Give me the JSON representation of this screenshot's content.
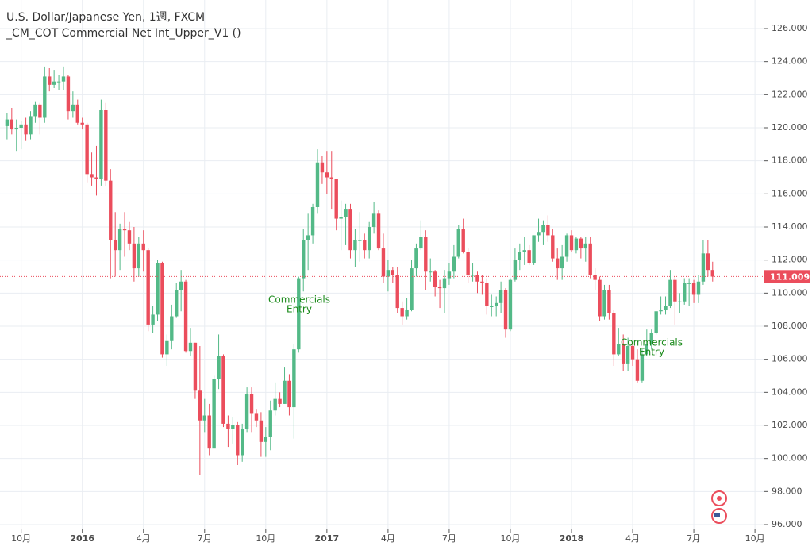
{
  "chart_data": {
    "type": "candlestick",
    "title": "U.S. Dollar/Japanese Yen, 1週, FXCM",
    "subtitle": "_CM_COT Commercial Net Int_Upper_V1 ()",
    "up_color": "#53b987",
    "down_color": "#eb4d5c",
    "grid": true,
    "ylim": [
      96,
      126
    ],
    "yticks": [
      {
        "value": 96,
        "label": "96.000"
      },
      {
        "value": 98,
        "label": "98.000"
      },
      {
        "value": 100,
        "label": "100.000"
      },
      {
        "value": 102,
        "label": "102.000"
      },
      {
        "value": 104,
        "label": "104.000"
      },
      {
        "value": 106,
        "label": "106.000"
      },
      {
        "value": 108,
        "label": "108.000"
      },
      {
        "value": 110,
        "label": "110.000"
      },
      {
        "value": 112,
        "label": "112.000"
      },
      {
        "value": 114,
        "label": "114.000"
      },
      {
        "value": 116,
        "label": "116.000"
      },
      {
        "value": 118,
        "label": "118.000"
      },
      {
        "value": 120,
        "label": "120.000"
      },
      {
        "value": 122,
        "label": "122.000"
      },
      {
        "value": 124,
        "label": "124.000"
      },
      {
        "value": 126,
        "label": "126.000"
      }
    ],
    "xlim": [
      -1.5,
      160.5
    ],
    "xticks": [
      {
        "value": 3,
        "label": "10月"
      },
      {
        "value": 16,
        "label": "2016"
      },
      {
        "value": 29,
        "label": "4月"
      },
      {
        "value": 42,
        "label": "7月"
      },
      {
        "value": 55,
        "label": "10月"
      },
      {
        "value": 68,
        "label": "2017"
      },
      {
        "value": 81,
        "label": "4月"
      },
      {
        "value": 94,
        "label": "7月"
      },
      {
        "value": 107,
        "label": "10月"
      },
      {
        "value": 120,
        "label": "2018"
      },
      {
        "value": 133,
        "label": "4月"
      },
      {
        "value": 146,
        "label": "7月"
      },
      {
        "value": 159,
        "label": "10月"
      }
    ],
    "last_price": 111.009,
    "last_price_label": "111.009",
    "last_price_color": "#eb4d5c",
    "annotations": [
      {
        "lines": [
          "Commercials",
          "Entry"
        ]
      },
      {
        "lines": [
          "Commercials",
          "Entry"
        ]
      }
    ],
    "ohlc": [
      [
        120.1,
        120.9,
        119.3,
        120.5
      ],
      [
        120.5,
        121.2,
        119.6,
        119.9
      ],
      [
        119.9,
        120.5,
        118.6,
        120.0
      ],
      [
        120.0,
        120.4,
        118.7,
        120.2
      ],
      [
        120.2,
        120.6,
        119.2,
        119.6
      ],
      [
        119.6,
        121.0,
        119.3,
        120.7
      ],
      [
        120.7,
        121.6,
        120.3,
        121.4
      ],
      [
        121.4,
        121.5,
        119.6,
        120.6
      ],
      [
        120.6,
        123.7,
        120.3,
        123.1
      ],
      [
        123.1,
        123.6,
        122.2,
        122.6
      ],
      [
        122.6,
        123.5,
        122.4,
        122.8
      ],
      [
        122.8,
        123.2,
        122.3,
        122.8
      ],
      [
        122.8,
        123.7,
        122.3,
        123.1
      ],
      [
        123.1,
        123.2,
        120.5,
        121.0
      ],
      [
        121.0,
        122.2,
        120.6,
        121.4
      ],
      [
        121.4,
        121.7,
        120.2,
        120.3
      ],
      [
        120.3,
        120.6,
        119.9,
        120.2
      ],
      [
        120.2,
        120.3,
        116.7,
        117.2
      ],
      [
        117.2,
        118.5,
        116.5,
        117.0
      ],
      [
        117.0,
        118.9,
        115.9,
        116.9
      ],
      [
        116.9,
        121.7,
        116.5,
        121.1
      ],
      [
        121.1,
        121.5,
        116.5,
        116.8
      ],
      [
        116.8,
        117.5,
        110.9,
        113.2
      ],
      [
        113.2,
        114.9,
        111.0,
        112.6
      ],
      [
        112.6,
        114.2,
        111.4,
        113.9
      ],
      [
        113.9,
        114.9,
        112.2,
        113.8
      ],
      [
        113.8,
        114.3,
        112.6,
        113.0
      ],
      [
        113.0,
        114.0,
        110.7,
        111.5
      ],
      [
        111.5,
        113.4,
        111.0,
        113.0
      ],
      [
        113.0,
        113.8,
        111.3,
        112.6
      ],
      [
        112.6,
        112.7,
        107.7,
        108.1
      ],
      [
        108.1,
        109.2,
        107.6,
        108.7
      ],
      [
        108.7,
        112.0,
        108.3,
        111.8
      ],
      [
        111.8,
        111.9,
        106.1,
        106.3
      ],
      [
        106.3,
        107.5,
        105.6,
        107.1
      ],
      [
        107.1,
        109.3,
        106.6,
        108.6
      ],
      [
        108.6,
        110.6,
        108.5,
        110.2
      ],
      [
        110.2,
        111.4,
        108.9,
        110.7
      ],
      [
        110.7,
        110.8,
        106.4,
        106.5
      ],
      [
        106.5,
        107.9,
        106.2,
        107.0
      ],
      [
        107.0,
        107.0,
        103.6,
        104.1
      ],
      [
        104.1,
        106.8,
        99.0,
        102.3
      ],
      [
        102.3,
        103.6,
        101.6,
        102.6
      ],
      [
        102.6,
        103.3,
        100.2,
        100.6
      ],
      [
        100.6,
        105.0,
        100.6,
        104.8
      ],
      [
        104.8,
        107.5,
        104.2,
        106.2
      ],
      [
        106.2,
        106.3,
        101.9,
        102.1
      ],
      [
        102.1,
        102.6,
        100.7,
        101.8
      ],
      [
        101.8,
        102.5,
        100.9,
        102.0
      ],
      [
        102.0,
        102.2,
        99.6,
        100.2
      ],
      [
        100.2,
        102.1,
        99.8,
        101.8
      ],
      [
        101.8,
        104.3,
        101.6,
        103.9
      ],
      [
        103.9,
        104.3,
        101.6,
        102.7
      ],
      [
        102.7,
        103.0,
        101.9,
        102.3
      ],
      [
        102.3,
        102.8,
        100.1,
        101.0
      ],
      [
        101.0,
        101.9,
        100.1,
        101.3
      ],
      [
        101.3,
        103.5,
        100.5,
        102.9
      ],
      [
        102.9,
        104.6,
        102.6,
        103.6
      ],
      [
        103.6,
        104.0,
        103.1,
        103.3
      ],
      [
        103.3,
        105.5,
        103.3,
        104.7
      ],
      [
        104.7,
        105.1,
        102.6,
        103.1
      ],
      [
        103.1,
        106.9,
        101.2,
        106.6
      ],
      [
        106.6,
        111.0,
        106.4,
        110.9
      ],
      [
        110.9,
        113.9,
        110.1,
        113.2
      ],
      [
        113.2,
        114.8,
        111.4,
        113.5
      ],
      [
        113.5,
        115.4,
        113.0,
        115.2
      ],
      [
        115.2,
        118.7,
        114.8,
        117.9
      ],
      [
        117.9,
        118.3,
        116.6,
        117.3
      ],
      [
        117.3,
        118.6,
        116.0,
        117.0
      ],
      [
        117.0,
        118.6,
        115.1,
        116.9
      ],
      [
        116.9,
        116.9,
        113.8,
        114.5
      ],
      [
        114.5,
        115.6,
        112.6,
        114.6
      ],
      [
        114.6,
        115.4,
        112.9,
        115.1
      ],
      [
        115.1,
        115.4,
        112.1,
        112.6
      ],
      [
        112.6,
        113.9,
        111.6,
        113.2
      ],
      [
        113.2,
        114.9,
        111.9,
        113.2
      ],
      [
        113.2,
        113.6,
        112.1,
        112.6
      ],
      [
        112.6,
        114.3,
        112.1,
        114.0
      ],
      [
        114.0,
        115.5,
        113.6,
        114.8
      ],
      [
        114.8,
        115.0,
        112.6,
        112.7
      ],
      [
        112.7,
        113.6,
        110.6,
        111.0
      ],
      [
        111.0,
        112.0,
        110.1,
        111.4
      ],
      [
        111.4,
        111.6,
        110.6,
        111.1
      ],
      [
        111.1,
        111.6,
        108.8,
        109.1
      ],
      [
        109.1,
        109.5,
        108.1,
        108.6
      ],
      [
        108.6,
        109.7,
        108.4,
        109.0
      ],
      [
        109.0,
        112.0,
        108.9,
        111.5
      ],
      [
        111.5,
        113.0,
        111.0,
        112.7
      ],
      [
        112.7,
        114.4,
        112.6,
        113.4
      ],
      [
        113.4,
        113.8,
        110.2,
        111.3
      ],
      [
        111.3,
        112.1,
        110.7,
        111.3
      ],
      [
        111.3,
        111.4,
        109.8,
        110.4
      ],
      [
        110.4,
        110.8,
        109.1,
        110.3
      ],
      [
        110.3,
        111.4,
        108.8,
        110.9
      ],
      [
        110.9,
        111.8,
        110.5,
        111.3
      ],
      [
        111.3,
        112.9,
        110.9,
        112.2
      ],
      [
        112.2,
        114.1,
        112.1,
        113.9
      ],
      [
        113.9,
        114.5,
        112.4,
        112.5
      ],
      [
        112.5,
        112.7,
        110.6,
        111.1
      ],
      [
        111.1,
        111.8,
        110.7,
        111.1
      ],
      [
        111.1,
        111.3,
        110.0,
        110.7
      ],
      [
        110.7,
        111.1,
        109.9,
        110.6
      ],
      [
        110.6,
        110.9,
        108.7,
        109.2
      ],
      [
        109.2,
        109.9,
        108.6,
        109.2
      ],
      [
        109.2,
        109.8,
        108.6,
        109.4
      ],
      [
        109.4,
        110.7,
        108.8,
        110.2
      ],
      [
        110.2,
        110.3,
        107.3,
        107.8
      ],
      [
        107.8,
        110.9,
        107.7,
        110.8
      ],
      [
        110.8,
        112.7,
        110.7,
        112.0
      ],
      [
        112.0,
        113.0,
        111.4,
        112.5
      ],
      [
        112.5,
        113.4,
        111.7,
        112.6
      ],
      [
        112.6,
        112.9,
        111.7,
        111.8
      ],
      [
        111.8,
        113.5,
        111.7,
        113.5
      ],
      [
        113.5,
        114.5,
        113.1,
        113.7
      ],
      [
        113.7,
        114.4,
        112.9,
        114.1
      ],
      [
        114.1,
        114.7,
        113.1,
        113.5
      ],
      [
        113.5,
        113.9,
        111.9,
        112.1
      ],
      [
        112.1,
        112.7,
        110.8,
        111.5
      ],
      [
        111.5,
        112.9,
        110.8,
        112.2
      ],
      [
        112.2,
        113.6,
        111.9,
        113.5
      ],
      [
        113.5,
        113.8,
        112.5,
        112.6
      ],
      [
        112.6,
        113.4,
        112.4,
        113.3
      ],
      [
        113.3,
        113.4,
        112.1,
        112.7
      ],
      [
        112.7,
        113.4,
        111.9,
        113.0
      ],
      [
        113.0,
        113.4,
        110.9,
        111.1
      ],
      [
        111.1,
        111.5,
        110.2,
        110.8
      ],
      [
        110.8,
        111.0,
        108.3,
        108.6
      ],
      [
        108.6,
        110.5,
        108.4,
        110.2
      ],
      [
        110.2,
        110.5,
        108.4,
        108.8
      ],
      [
        108.8,
        109.0,
        105.6,
        106.3
      ],
      [
        106.3,
        107.9,
        106.2,
        106.9
      ],
      [
        106.9,
        107.5,
        105.3,
        105.7
      ],
      [
        105.7,
        107.3,
        105.3,
        106.8
      ],
      [
        106.8,
        107.0,
        105.6,
        106.0
      ],
      [
        106.0,
        106.6,
        104.6,
        104.7
      ],
      [
        104.7,
        106.6,
        104.6,
        106.3
      ],
      [
        106.3,
        107.8,
        106.2,
        106.9
      ],
      [
        106.9,
        107.8,
        106.6,
        107.6
      ],
      [
        107.6,
        108.9,
        107.5,
        108.9
      ],
      [
        108.9,
        109.8,
        108.7,
        109.0
      ],
      [
        109.0,
        109.8,
        108.7,
        109.2
      ],
      [
        109.2,
        111.4,
        109.1,
        110.8
      ],
      [
        110.8,
        111.0,
        108.1,
        109.5
      ],
      [
        109.5,
        110.0,
        108.8,
        109.5
      ],
      [
        109.5,
        110.9,
        109.3,
        110.6
      ],
      [
        110.6,
        110.9,
        109.2,
        110.6
      ],
      [
        110.6,
        110.8,
        109.4,
        109.9
      ],
      [
        109.9,
        111.1,
        109.4,
        110.7
      ],
      [
        110.7,
        113.2,
        110.5,
        112.4
      ],
      [
        112.4,
        113.2,
        111.0,
        111.4
      ],
      [
        111.4,
        111.9,
        110.7,
        111.0
      ]
    ]
  }
}
